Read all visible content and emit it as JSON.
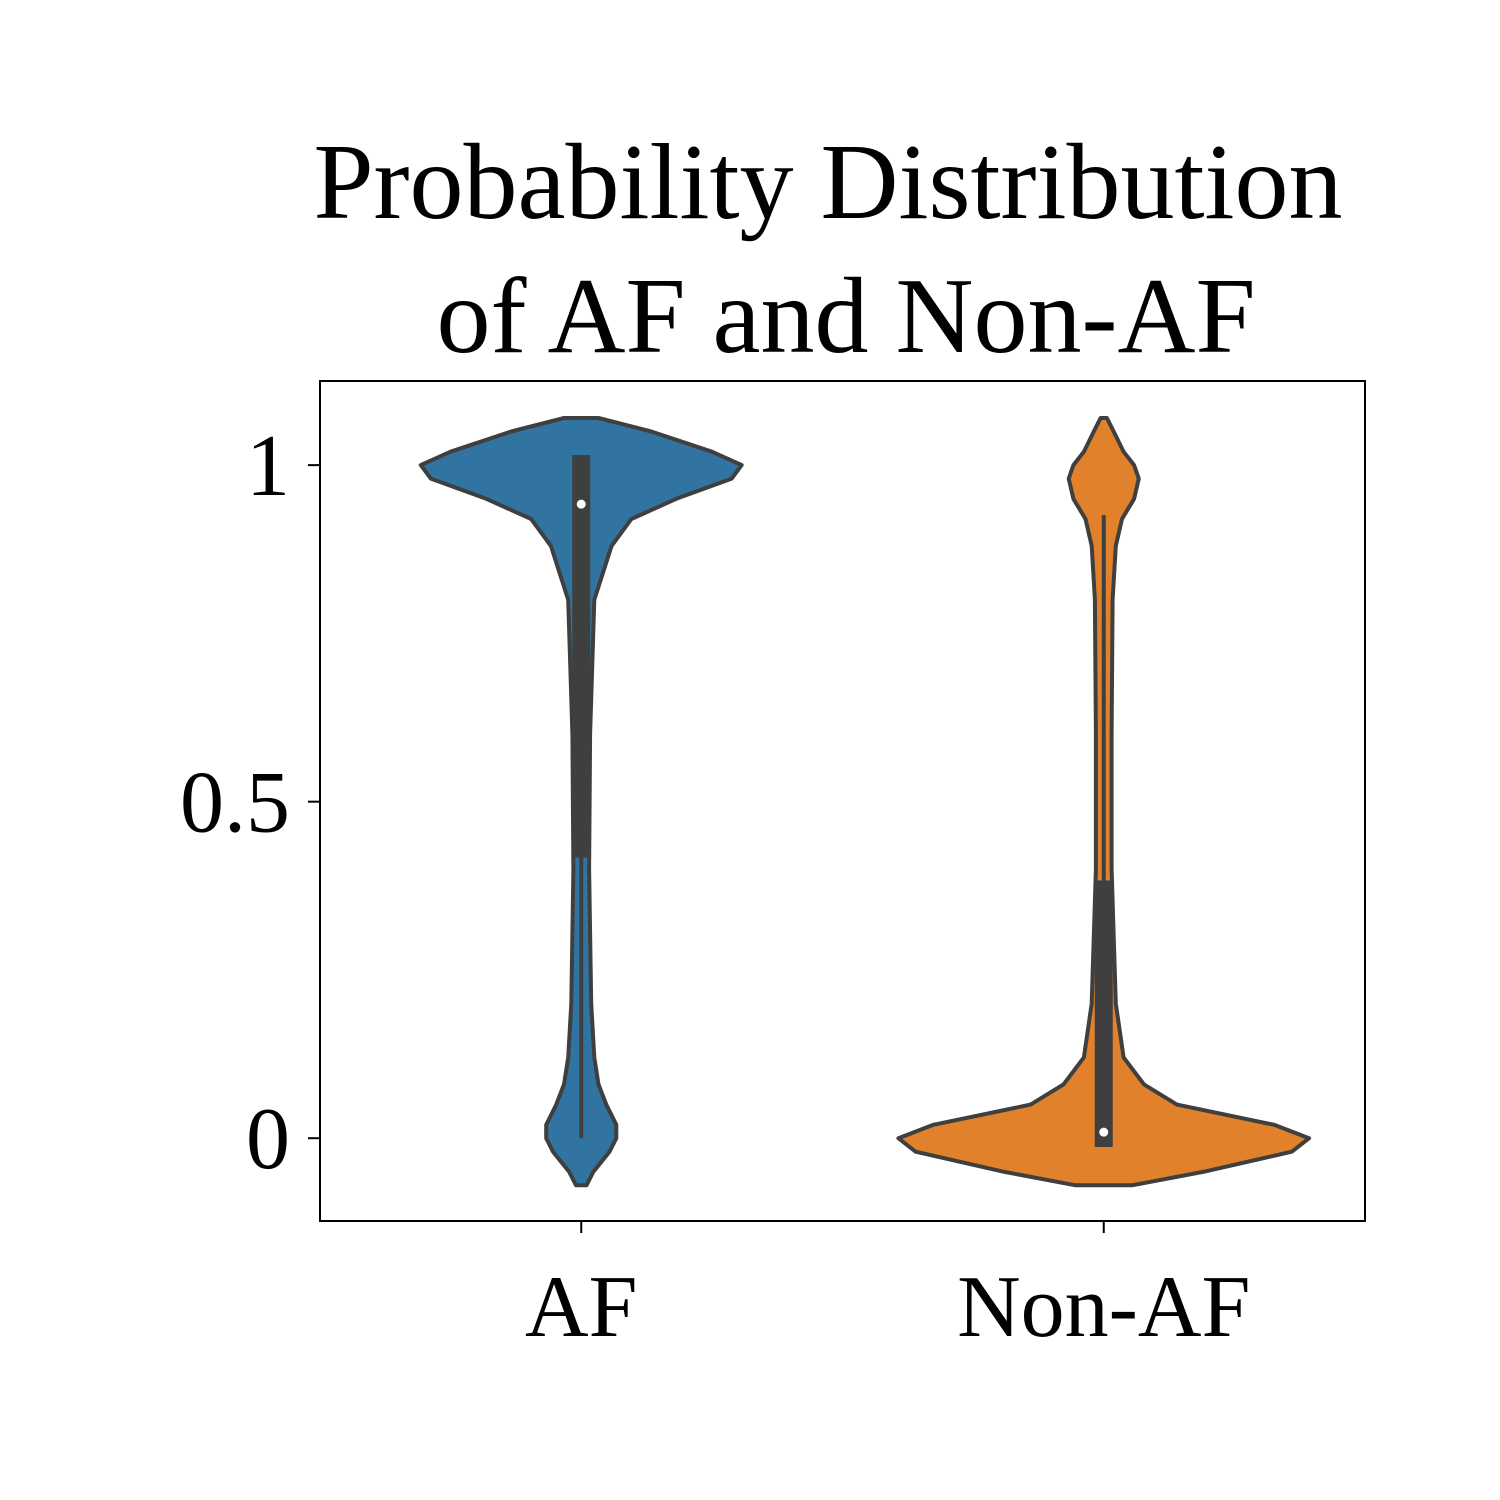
{
  "chart_data": {
    "type": "violin",
    "title": [
      "Probability Distribution",
      "of AF and Non-AF"
    ],
    "categories": [
      "AF",
      "Non-AF"
    ],
    "ylim": [
      -0.123,
      1.125
    ],
    "yticks": [
      0.0,
      0.5,
      1.0
    ],
    "y_grid": [
      -0.07,
      -0.05,
      -0.02,
      0.0,
      0.02,
      0.05,
      0.08,
      0.12,
      0.2,
      0.4,
      0.6,
      0.8,
      0.88,
      0.92,
      0.95,
      0.98,
      1.0,
      1.02,
      1.05,
      1.07
    ],
    "series": [
      {
        "name": "AF",
        "color": "#3274a1",
        "widths": [
          0.01,
          0.023,
          0.054,
          0.067,
          0.067,
          0.048,
          0.033,
          0.025,
          0.019,
          0.015,
          0.017,
          0.025,
          0.058,
          0.096,
          0.182,
          0.288,
          0.307,
          0.25,
          0.134,
          0.033
        ],
        "q1": 0.417,
        "median": 0.942,
        "q3": 1.015,
        "whisker_low": 0.0,
        "whisker_high": 1.015
      },
      {
        "name": "Non-AF",
        "color": "#e1812c",
        "widths": [
          0.054,
          0.19,
          0.36,
          0.393,
          0.326,
          0.14,
          0.077,
          0.038,
          0.023,
          0.015,
          0.015,
          0.017,
          0.023,
          0.035,
          0.058,
          0.067,
          0.058,
          0.038,
          0.019,
          0.006
        ],
        "q1": -0.013,
        "median": 0.009,
        "q3": 0.383,
        "whisker_low": -0.013,
        "whisker_high": 0.926
      }
    ]
  }
}
